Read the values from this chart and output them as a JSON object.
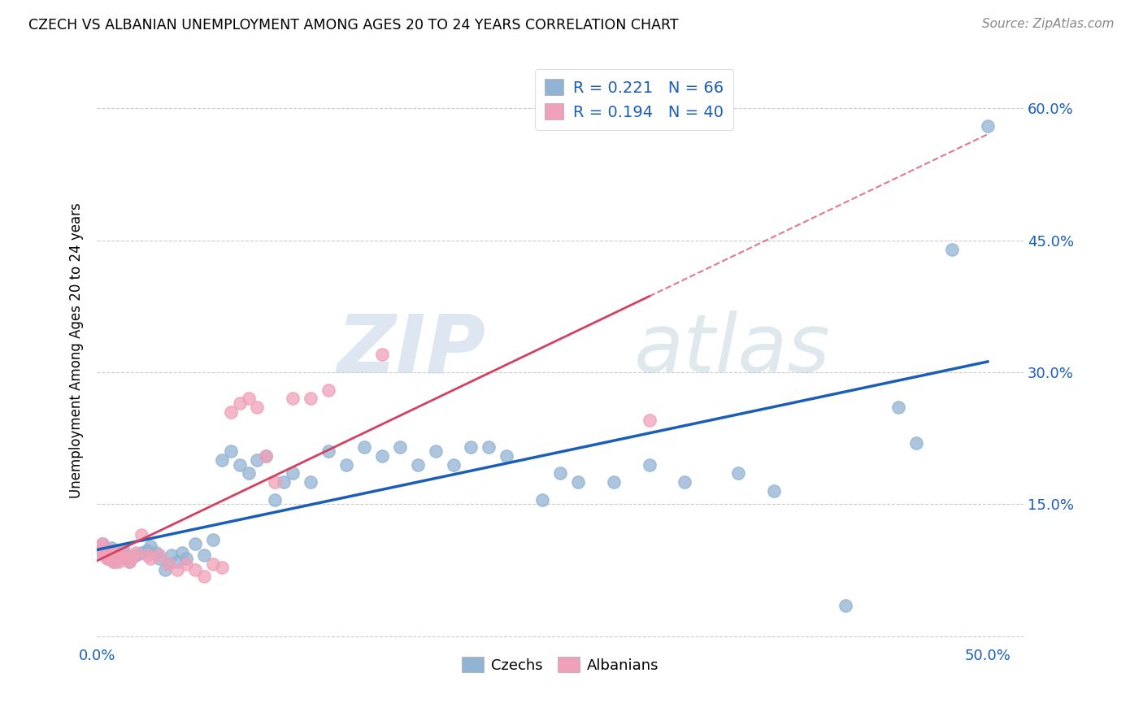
{
  "title": "CZECH VS ALBANIAN UNEMPLOYMENT AMONG AGES 20 TO 24 YEARS CORRELATION CHART",
  "source": "Source: ZipAtlas.com",
  "ylabel": "Unemployment Among Ages 20 to 24 years",
  "xlim": [
    0.0,
    0.52
  ],
  "ylim": [
    -0.01,
    0.66
  ],
  "xticks": [
    0.0,
    0.1,
    0.2,
    0.3,
    0.4,
    0.5
  ],
  "yticks": [
    0.0,
    0.15,
    0.3,
    0.45,
    0.6
  ],
  "xtick_labels": [
    "0.0%",
    "",
    "",
    "",
    "",
    "50.0%"
  ],
  "right_ytick_labels": [
    "60.0%",
    "45.0%",
    "30.0%",
    "15.0%"
  ],
  "czech_color": "#92b4d4",
  "albanian_color": "#f0a0b8",
  "czech_edge_color": "#7aaac8",
  "albanian_edge_color": "#e890a8",
  "czech_line_color": "#1a5eb8",
  "albanian_line_color": "#d44060",
  "czech_R": 0.221,
  "czech_N": 66,
  "albanian_R": 0.194,
  "albanian_N": 40,
  "czech_x": [
    0.001,
    0.002,
    0.003,
    0.004,
    0.005,
    0.006,
    0.007,
    0.008,
    0.009,
    0.01,
    0.011,
    0.012,
    0.013,
    0.015,
    0.016,
    0.018,
    0.02,
    0.022,
    0.025,
    0.028,
    0.03,
    0.033,
    0.035,
    0.038,
    0.04,
    0.042,
    0.045,
    0.048,
    0.05,
    0.055,
    0.06,
    0.065,
    0.07,
    0.075,
    0.08,
    0.085,
    0.09,
    0.095,
    0.1,
    0.105,
    0.11,
    0.12,
    0.13,
    0.14,
    0.15,
    0.16,
    0.17,
    0.18,
    0.19,
    0.2,
    0.21,
    0.22,
    0.23,
    0.25,
    0.26,
    0.27,
    0.29,
    0.31,
    0.33,
    0.36,
    0.38,
    0.42,
    0.45,
    0.46,
    0.48,
    0.5
  ],
  "czech_y": [
    0.1,
    0.095,
    0.105,
    0.098,
    0.092,
    0.088,
    0.095,
    0.1,
    0.09,
    0.085,
    0.092,
    0.088,
    0.095,
    0.098,
    0.092,
    0.085,
    0.09,
    0.092,
    0.095,
    0.098,
    0.102,
    0.095,
    0.088,
    0.075,
    0.082,
    0.092,
    0.085,
    0.095,
    0.088,
    0.105,
    0.092,
    0.11,
    0.2,
    0.21,
    0.195,
    0.185,
    0.2,
    0.205,
    0.155,
    0.175,
    0.185,
    0.175,
    0.21,
    0.195,
    0.215,
    0.205,
    0.215,
    0.195,
    0.21,
    0.195,
    0.215,
    0.215,
    0.205,
    0.155,
    0.185,
    0.175,
    0.175,
    0.195,
    0.175,
    0.185,
    0.165,
    0.035,
    0.26,
    0.22,
    0.44,
    0.58
  ],
  "albanian_x": [
    0.001,
    0.002,
    0.003,
    0.004,
    0.005,
    0.006,
    0.007,
    0.008,
    0.009,
    0.01,
    0.011,
    0.012,
    0.013,
    0.015,
    0.016,
    0.018,
    0.02,
    0.022,
    0.025,
    0.028,
    0.03,
    0.035,
    0.04,
    0.045,
    0.05,
    0.055,
    0.06,
    0.065,
    0.07,
    0.075,
    0.08,
    0.085,
    0.09,
    0.095,
    0.1,
    0.11,
    0.12,
    0.13,
    0.16,
    0.31
  ],
  "albanian_y": [
    0.1,
    0.098,
    0.105,
    0.095,
    0.09,
    0.088,
    0.092,
    0.098,
    0.085,
    0.088,
    0.092,
    0.085,
    0.09,
    0.095,
    0.088,
    0.085,
    0.09,
    0.095,
    0.115,
    0.092,
    0.088,
    0.092,
    0.082,
    0.075,
    0.082,
    0.075,
    0.068,
    0.082,
    0.078,
    0.255,
    0.265,
    0.27,
    0.26,
    0.205,
    0.175,
    0.27,
    0.27,
    0.28,
    0.32,
    0.245
  ]
}
